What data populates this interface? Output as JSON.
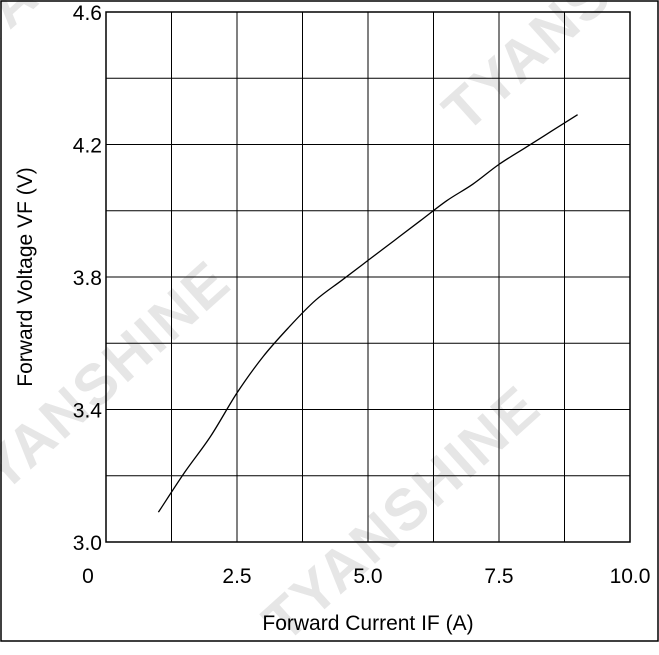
{
  "chart_data": {
    "type": "line",
    "xlabel": "Forward Current IF  (A)",
    "ylabel": "Forward  Voltage  VF  (V)",
    "xlim": [
      0,
      10
    ],
    "ylim": [
      3.0,
      4.6
    ],
    "x_ticks": [
      "0",
      "2.5",
      "5.0",
      "7.5",
      "10.0"
    ],
    "y_ticks": [
      "3.0",
      "3.4",
      "3.8",
      "4.2",
      "4.6"
    ],
    "grid": true,
    "series": [
      {
        "x": [
          1.0,
          1.5,
          2.0,
          2.5,
          3.0,
          3.5,
          4.0,
          4.5,
          5.0,
          5.5,
          6.0,
          6.5,
          7.0,
          7.5,
          8.0,
          8.5,
          9.0
        ],
        "y": [
          3.09,
          3.21,
          3.32,
          3.45,
          3.56,
          3.65,
          3.73,
          3.79,
          3.85,
          3.91,
          3.97,
          4.03,
          4.08,
          4.14,
          4.19,
          4.24,
          4.29
        ]
      }
    ]
  },
  "watermarks": [
    "TYANSHINE",
    "TYANSHINE",
    "TYANSHINE",
    "TYANSHINE"
  ],
  "colors": {
    "line": "#000000",
    "grid": "#000000",
    "frame": "#000000",
    "watermark": "#e6e6e6"
  }
}
